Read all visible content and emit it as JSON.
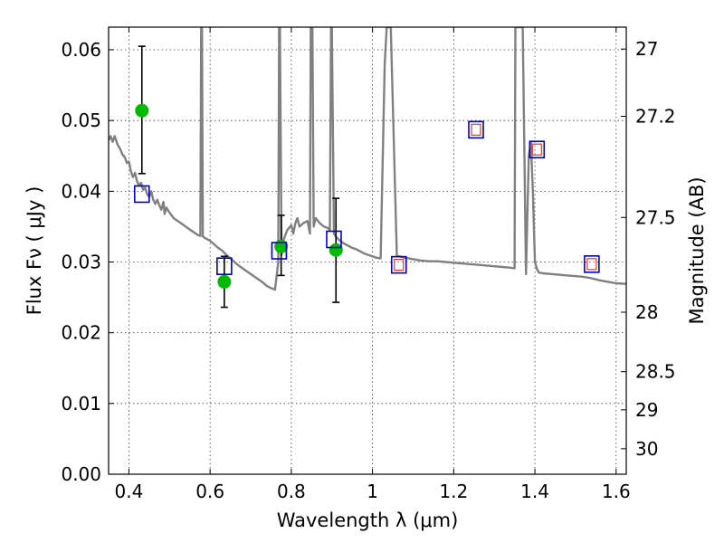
{
  "chart_data": {
    "type": "scatter",
    "title": "",
    "xlabel": "Wavelength  λ (μm)",
    "ylabel": "Flux  Fν  ( μJy )",
    "ylabel_right": "Magnitude (AB)",
    "xlim": [
      0.35,
      1.625
    ],
    "ylim": [
      0.0,
      0.0632
    ],
    "grid": true,
    "x_ticks": [
      0.4,
      0.6,
      0.8,
      1.0,
      1.2,
      1.4,
      1.6
    ],
    "x_tick_labels": [
      "0.4",
      "0.6",
      "0.8",
      "1",
      "1.2",
      "1.4",
      "1.6"
    ],
    "y_ticks": [
      0.0,
      0.01,
      0.02,
      0.03,
      0.04,
      0.05,
      0.06
    ],
    "y_tick_labels": [
      "0.00",
      "0.01",
      "0.02",
      "0.03",
      "0.04",
      "0.05",
      "0.06"
    ],
    "right_ticks": [
      {
        "flux": 0.0601,
        "label": "27"
      },
      {
        "flux": 0.0506,
        "label": "27.2"
      },
      {
        "flux": 0.0363,
        "label": "27.5"
      },
      {
        "flux": 0.0229,
        "label": "28"
      },
      {
        "flux": 0.0145,
        "label": "28.5"
      },
      {
        "flux": 0.0091,
        "label": "29"
      },
      {
        "flux": 0.0036,
        "label": "30"
      }
    ],
    "colors": {
      "model": "#808080",
      "observed": "#00bb00",
      "errorbar": "#000000",
      "model_phot": "#0000cc",
      "nir_inner": "#ee3333"
    },
    "series": [
      {
        "kind": "model-spectrum",
        "points": [
          [
            0.35,
            0.0472
          ],
          [
            0.355,
            0.0478
          ],
          [
            0.36,
            0.047
          ],
          [
            0.365,
            0.0478
          ],
          [
            0.372,
            0.0466
          ],
          [
            0.378,
            0.046
          ],
          [
            0.384,
            0.0452
          ],
          [
            0.39,
            0.0448
          ],
          [
            0.395,
            0.044
          ],
          [
            0.4,
            0.0442
          ],
          [
            0.405,
            0.0428
          ],
          [
            0.41,
            0.042
          ],
          [
            0.415,
            0.0426
          ],
          [
            0.42,
            0.0414
          ],
          [
            0.425,
            0.0408
          ],
          [
            0.43,
            0.0412
          ],
          [
            0.435,
            0.0402
          ],
          [
            0.44,
            0.0405
          ],
          [
            0.445,
            0.0396
          ],
          [
            0.45,
            0.0392
          ],
          [
            0.455,
            0.04
          ],
          [
            0.46,
            0.0388
          ],
          [
            0.465,
            0.0382
          ],
          [
            0.47,
            0.0388
          ],
          [
            0.475,
            0.038
          ],
          [
            0.48,
            0.0374
          ],
          [
            0.485,
            0.0385
          ],
          [
            0.488,
            0.0368
          ],
          [
            0.492,
            0.0377
          ],
          [
            0.5,
            0.037
          ],
          [
            0.51,
            0.0362
          ],
          [
            0.52,
            0.0358
          ],
          [
            0.53,
            0.0354
          ],
          [
            0.54,
            0.035
          ],
          [
            0.55,
            0.0346
          ],
          [
            0.56,
            0.0342
          ],
          [
            0.57,
            0.0338
          ],
          [
            0.576,
            0.0337
          ],
          [
            0.578,
            0.0632
          ],
          [
            0.58,
            0.0632
          ],
          [
            0.582,
            0.0336
          ],
          [
            0.59,
            0.0333
          ],
          [
            0.6,
            0.033
          ],
          [
            0.61,
            0.0325
          ],
          [
            0.62,
            0.032
          ],
          [
            0.63,
            0.0316
          ],
          [
            0.64,
            0.031
          ],
          [
            0.65,
            0.0305
          ],
          [
            0.66,
            0.03
          ],
          [
            0.67,
            0.0295
          ],
          [
            0.68,
            0.0291
          ],
          [
            0.69,
            0.0287
          ],
          [
            0.7,
            0.0283
          ],
          [
            0.71,
            0.0279
          ],
          [
            0.72,
            0.0275
          ],
          [
            0.73,
            0.0271
          ],
          [
            0.74,
            0.0266
          ],
          [
            0.75,
            0.0263
          ],
          [
            0.76,
            0.0261
          ],
          [
            0.768,
            0.03
          ],
          [
            0.77,
            0.0632
          ],
          [
            0.772,
            0.0632
          ],
          [
            0.776,
            0.031
          ],
          [
            0.78,
            0.033
          ],
          [
            0.79,
            0.0345
          ],
          [
            0.8,
            0.0352
          ],
          [
            0.805,
            0.034
          ],
          [
            0.81,
            0.0355
          ],
          [
            0.815,
            0.0362
          ],
          [
            0.82,
            0.035
          ],
          [
            0.83,
            0.0355
          ],
          [
            0.84,
            0.0358
          ],
          [
            0.846,
            0.034
          ],
          [
            0.848,
            0.0632
          ],
          [
            0.852,
            0.0632
          ],
          [
            0.855,
            0.035
          ],
          [
            0.86,
            0.0362
          ],
          [
            0.87,
            0.0355
          ],
          [
            0.88,
            0.035
          ],
          [
            0.89,
            0.0348
          ],
          [
            0.895,
            0.0345
          ],
          [
            0.898,
            0.0632
          ],
          [
            0.9,
            0.0632
          ],
          [
            0.905,
            0.034
          ],
          [
            0.91,
            0.0336
          ],
          [
            0.92,
            0.033
          ],
          [
            0.93,
            0.0326
          ],
          [
            0.94,
            0.0323
          ],
          [
            0.95,
            0.032
          ],
          [
            0.96,
            0.0318
          ],
          [
            0.97,
            0.0315
          ],
          [
            0.98,
            0.0312
          ],
          [
            0.99,
            0.031
          ],
          [
            1.0,
            0.0308
          ],
          [
            1.01,
            0.0306
          ],
          [
            1.02,
            0.0305
          ],
          [
            1.03,
            0.058
          ],
          [
            1.035,
            0.0632
          ],
          [
            1.045,
            0.0632
          ],
          [
            1.06,
            0.0309
          ],
          [
            1.08,
            0.0306
          ],
          [
            1.1,
            0.0304
          ],
          [
            1.12,
            0.0302
          ],
          [
            1.14,
            0.0301
          ],
          [
            1.16,
            0.0301
          ],
          [
            1.18,
            0.03
          ],
          [
            1.2,
            0.0299
          ],
          [
            1.22,
            0.0298
          ],
          [
            1.24,
            0.0297
          ],
          [
            1.26,
            0.0296
          ],
          [
            1.28,
            0.0295
          ],
          [
            1.3,
            0.0294
          ],
          [
            1.32,
            0.0293
          ],
          [
            1.34,
            0.0292
          ],
          [
            1.35,
            0.0291
          ],
          [
            1.352,
            0.0632
          ],
          [
            1.37,
            0.0632
          ],
          [
            1.378,
            0.0283
          ],
          [
            1.385,
            0.045
          ],
          [
            1.39,
            0.047
          ],
          [
            1.395,
            0.04
          ],
          [
            1.4,
            0.03
          ],
          [
            1.405,
            0.029
          ],
          [
            1.41,
            0.0285
          ],
          [
            1.42,
            0.0284
          ],
          [
            1.44,
            0.0283
          ],
          [
            1.46,
            0.0282
          ],
          [
            1.48,
            0.0281
          ],
          [
            1.5,
            0.028
          ],
          [
            1.52,
            0.0279
          ],
          [
            1.54,
            0.0277
          ],
          [
            1.56,
            0.0274
          ],
          [
            1.58,
            0.0272
          ],
          [
            1.6,
            0.027
          ],
          [
            1.625,
            0.0269
          ]
        ]
      },
      {
        "kind": "observed",
        "points": [
          {
            "x": 0.432,
            "y": 0.0514,
            "err_low": 0.0425,
            "err_high": 0.0605
          },
          {
            "x": 0.635,
            "y": 0.0272,
            "err_low": 0.0236,
            "err_high": 0.0308
          },
          {
            "x": 0.775,
            "y": 0.0322,
            "err_low": 0.0281,
            "err_high": 0.0366
          },
          {
            "x": 0.91,
            "y": 0.0317,
            "err_low": 0.0243,
            "err_high": 0.039
          }
        ]
      },
      {
        "kind": "model-photometry",
        "points": [
          {
            "x": 0.432,
            "y": 0.0396
          },
          {
            "x": 0.635,
            "y": 0.0294
          },
          {
            "x": 0.77,
            "y": 0.0316
          },
          {
            "x": 0.905,
            "y": 0.0332
          },
          {
            "x": 1.065,
            "y": 0.0296,
            "inner": true
          },
          {
            "x": 1.255,
            "y": 0.0487,
            "inner": true
          },
          {
            "x": 1.405,
            "y": 0.0459,
            "inner": true
          },
          {
            "x": 1.54,
            "y": 0.0297,
            "inner": true
          }
        ]
      }
    ]
  }
}
